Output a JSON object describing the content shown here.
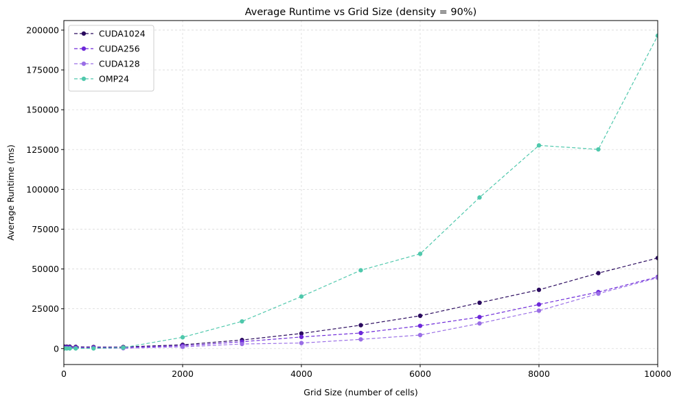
{
  "chart_data": {
    "type": "line",
    "title": "Average Runtime vs Grid Size (density = 90%)",
    "xlabel": "Grid Size (number of cells)",
    "ylabel": "Average Runtime (ms)",
    "xlim": [
      0,
      10000
    ],
    "ylim": [
      -10000,
      206000
    ],
    "x_ticks": [
      0,
      2000,
      4000,
      6000,
      8000,
      10000
    ],
    "y_ticks": [
      0,
      25000,
      50000,
      75000,
      100000,
      125000,
      150000,
      175000,
      200000
    ],
    "grid": true,
    "grid_style": "dashed",
    "legend_position": "top-left",
    "x": [
      10,
      50,
      100,
      200,
      500,
      1000,
      2000,
      3000,
      4000,
      5000,
      6000,
      7000,
      8000,
      9000,
      10000
    ],
    "series": [
      {
        "name": "CUDA1024",
        "color": "#2a0a5e",
        "values": [
          1200,
          1200,
          1200,
          1100,
          1000,
          1000,
          2400,
          5400,
          9500,
          14700,
          20600,
          28800,
          36900,
          47400,
          56900
        ]
      },
      {
        "name": "CUDA256",
        "color": "#6d28d9",
        "values": [
          800,
          800,
          800,
          700,
          700,
          700,
          1800,
          4300,
          7300,
          9800,
          14300,
          19800,
          27700,
          35500,
          45000
        ]
      },
      {
        "name": "CUDA128",
        "color": "#9a6ee6",
        "values": [
          200,
          200,
          200,
          200,
          200,
          200,
          1100,
          2900,
          3500,
          5800,
          8500,
          15800,
          23800,
          34500,
          44500
        ]
      },
      {
        "name": "OMP24",
        "color": "#4fc8ac",
        "values": [
          100,
          100,
          100,
          100,
          100,
          600,
          7100,
          17100,
          32700,
          49200,
          59500,
          94900,
          127600,
          125100,
          196500
        ]
      }
    ]
  }
}
